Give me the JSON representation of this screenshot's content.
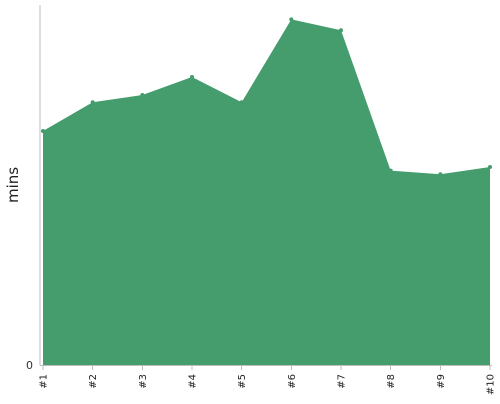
{
  "chart_data": {
    "type": "area",
    "title": "",
    "xlabel": "",
    "ylabel": "mins",
    "categories": [
      "#1",
      "#2",
      "#3",
      "#4",
      "#5",
      "#6",
      "#7",
      "#8",
      "#9",
      "#10"
    ],
    "series": [
      {
        "values": [
          65,
          73,
          75,
          80,
          73,
          96,
          93,
          54,
          53,
          55
        ],
        "color": "#459c6d"
      }
    ],
    "ylim": [
      0,
      100
    ],
    "y_ticks": [
      "0"
    ],
    "grid": false,
    "legend": "none"
  }
}
